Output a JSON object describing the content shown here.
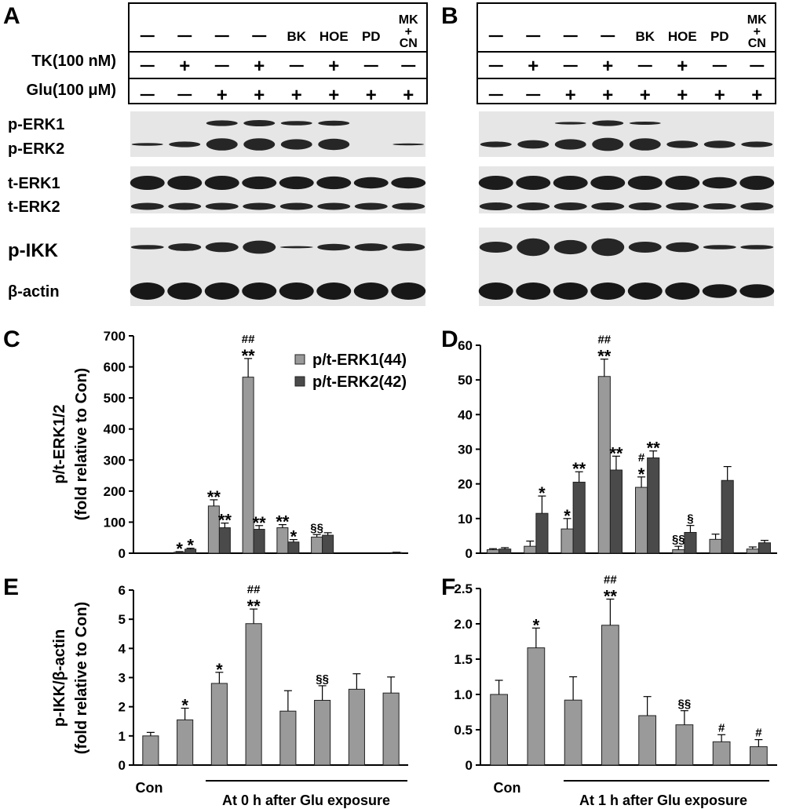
{
  "panels": {
    "A": "A",
    "B": "B",
    "C": "C",
    "D": "D",
    "E": "E",
    "F": "F"
  },
  "blot_header": {
    "row1": [
      "—",
      "—",
      "—",
      "—",
      "BK",
      "HOE",
      "PD",
      "MK\n+\nCN"
    ],
    "row2_label": "TK(100 nM)",
    "row2": [
      "—",
      "+",
      "—",
      "+",
      "—",
      "+",
      "—",
      "—"
    ],
    "row3_label": "Glu(100 μM)",
    "row3": [
      "—",
      "—",
      "+",
      "+",
      "+",
      "+",
      "+",
      "+"
    ]
  },
  "blot_rows": [
    "p-ERK1",
    "p-ERK2",
    "t-ERK1",
    "t-ERK2",
    "p-IKK",
    "β-actin"
  ],
  "legend": [
    "p/t-ERK1(44)",
    "p/t-ERK2(42)"
  ],
  "ylabel_top": [
    "p/t-ERK1/2",
    "(fold relative to Con)"
  ],
  "ylabel_bottom": [
    "p-IKK/β-actin",
    "(fold relative to Con)"
  ],
  "xaxis": {
    "con": "Con",
    "left_caption": "At 0 h after Glu exposure",
    "right_caption": "At 1 h after Glu exposure"
  },
  "colors": {
    "light": "#9a9a9a",
    "dark": "#4a4a4a",
    "axis": "#000000"
  },
  "chart_data": [
    {
      "id": "C",
      "type": "bar",
      "ylim": [
        0,
        700
      ],
      "yticks": [
        0,
        100,
        200,
        300,
        400,
        500,
        600,
        700
      ],
      "series": [
        {
          "name": "p/t-ERK1(44)",
          "values": [
            0,
            3,
            152,
            567,
            82,
            52,
            0,
            0
          ],
          "err": [
            0,
            2,
            20,
            60,
            10,
            8,
            0,
            0
          ]
        },
        {
          "name": "p/t-ERK2(42)",
          "values": [
            0,
            13,
            82,
            77,
            36,
            58,
            0,
            2
          ],
          "err": [
            0,
            3,
            15,
            12,
            8,
            8,
            0,
            1
          ]
        }
      ],
      "sig": [
        [
          "",
          "*",
          "**",
          "##\n**",
          "**",
          "§§",
          "",
          ""
        ],
        [
          "",
          "*",
          "**",
          "**",
          "*",
          "",
          "",
          ""
        ]
      ]
    },
    {
      "id": "D",
      "type": "bar",
      "ylim": [
        0,
        60
      ],
      "yticks": [
        0,
        10,
        20,
        30,
        40,
        50,
        60
      ],
      "series": [
        {
          "values": [
            1,
            2,
            7,
            51,
            19,
            1,
            4,
            1.2
          ],
          "err": [
            0.3,
            1.5,
            3,
            5,
            3,
            1,
            1.5,
            0.6
          ]
        },
        {
          "values": [
            1.2,
            11.5,
            20.5,
            24,
            27.5,
            6,
            21,
            3
          ],
          "err": [
            0.4,
            5,
            3,
            4,
            2,
            2,
            4,
            0.7
          ]
        }
      ],
      "sig": [
        [
          "",
          "",
          "*",
          "##\n**",
          "#\n*",
          "§§",
          "",
          ""
        ],
        [
          "",
          "*",
          "**",
          "**",
          "**",
          "§",
          "",
          ""
        ]
      ]
    },
    {
      "id": "E",
      "type": "bar",
      "ylim": [
        0,
        6
      ],
      "yticks": [
        0,
        1,
        2,
        3,
        4,
        5,
        6
      ],
      "series": [
        {
          "values": [
            1,
            1.55,
            2.8,
            4.85,
            1.85,
            2.22,
            2.6,
            2.47
          ],
          "err": [
            0.12,
            0.4,
            0.38,
            0.5,
            0.7,
            0.5,
            0.53,
            0.55
          ]
        }
      ],
      "sig": [
        [
          "",
          "*",
          "*",
          "##\n**",
          "",
          "§§",
          "",
          ""
        ]
      ]
    },
    {
      "id": "F",
      "type": "bar",
      "ylim": [
        0,
        2.5
      ],
      "yticks": [
        "0",
        "0.5",
        "1.0",
        "1.5",
        "2.0",
        "2.5"
      ],
      "series": [
        {
          "values": [
            1,
            1.66,
            0.92,
            1.98,
            0.7,
            0.57,
            0.33,
            0.26
          ],
          "err": [
            0.2,
            0.28,
            0.33,
            0.37,
            0.27,
            0.2,
            0.1,
            0.1
          ]
        }
      ],
      "sig": [
        [
          "",
          "*",
          "",
          "##\n**",
          "",
          "§§",
          "#",
          "#"
        ]
      ]
    }
  ]
}
